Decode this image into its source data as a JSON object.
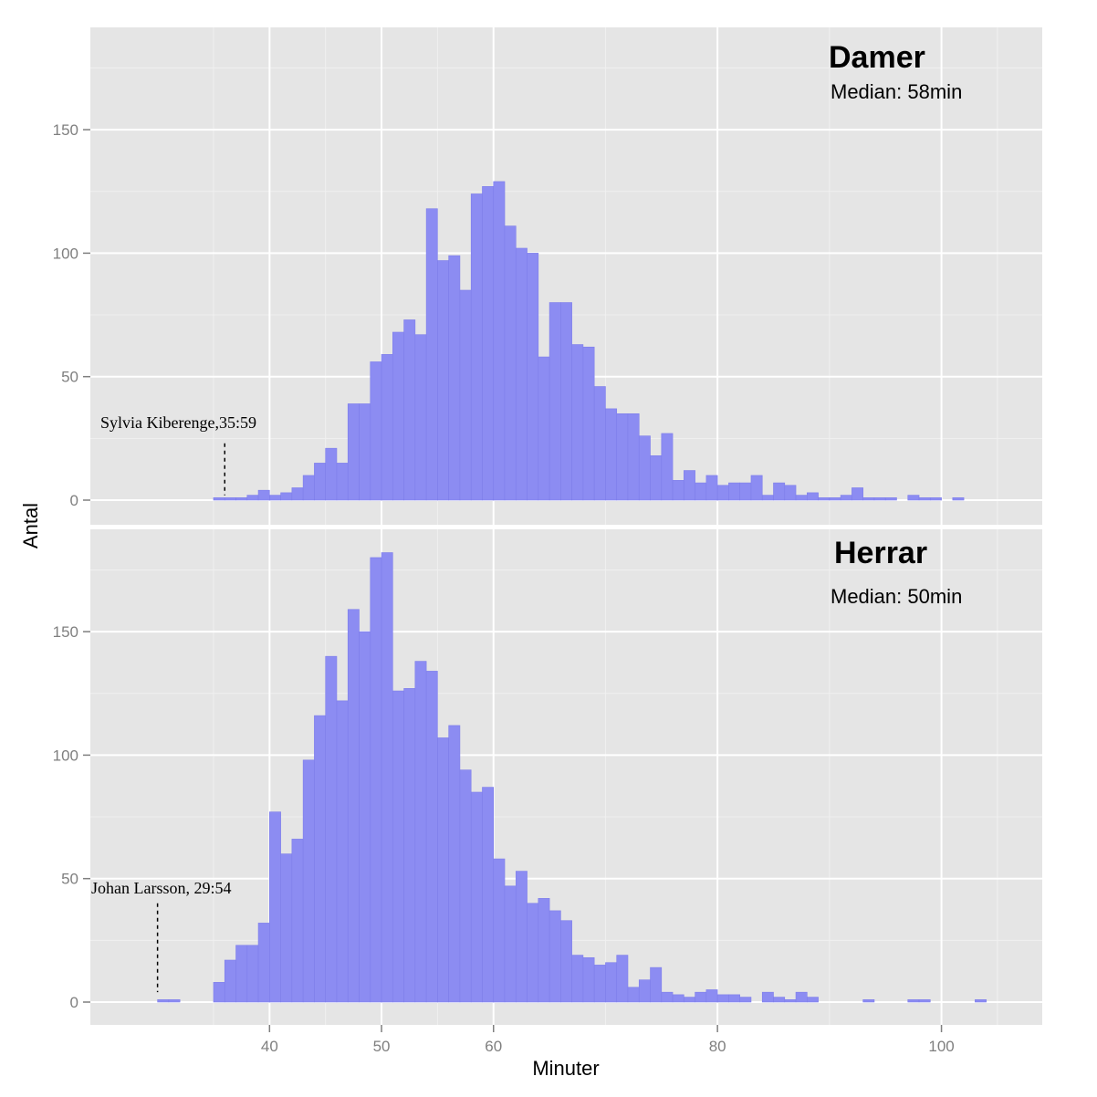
{
  "chart_data": {
    "type": "bar",
    "xlabel": "Minuter",
    "ylabel": "Antal",
    "xlim": [
      24,
      109
    ],
    "x_ticks": [
      40,
      50,
      60,
      80,
      100
    ],
    "x_tick_labels": [
      "40",
      "50",
      "60",
      "80",
      "100"
    ],
    "bin_width": 1,
    "grid": true,
    "colors": {
      "bar_fill": "#8c8cf2",
      "bar_stroke": "#7e7eea",
      "panel_bg": "#e5e5e5",
      "grid_major": "#ffffff",
      "grid_minor": "#f0f0f0",
      "tick_text": "#7f7f7f"
    },
    "panels": [
      {
        "title": "Damer",
        "median_text": "Median: 58min",
        "ylim": [
          0,
          185
        ],
        "y_ticks": [
          0,
          50,
          100,
          150
        ],
        "y_tick_labels": [
          "0",
          "50",
          "100",
          "150"
        ],
        "annotation": {
          "text": "Sylvia  Kiberenge,35:59",
          "x": 36,
          "y_from": 23,
          "y_to": 2
        },
        "bins": [
          {
            "x": 35,
            "y": 1
          },
          {
            "x": 36,
            "y": 1
          },
          {
            "x": 37,
            "y": 1
          },
          {
            "x": 38,
            "y": 2
          },
          {
            "x": 39,
            "y": 4
          },
          {
            "x": 40,
            "y": 2
          },
          {
            "x": 41,
            "y": 3
          },
          {
            "x": 42,
            "y": 5
          },
          {
            "x": 43,
            "y": 10
          },
          {
            "x": 44,
            "y": 15
          },
          {
            "x": 45,
            "y": 21
          },
          {
            "x": 46,
            "y": 15
          },
          {
            "x": 47,
            "y": 39
          },
          {
            "x": 48,
            "y": 39
          },
          {
            "x": 49,
            "y": 56
          },
          {
            "x": 50,
            "y": 59
          },
          {
            "x": 51,
            "y": 68
          },
          {
            "x": 52,
            "y": 73
          },
          {
            "x": 53,
            "y": 67
          },
          {
            "x": 54,
            "y": 118
          },
          {
            "x": 55,
            "y": 97
          },
          {
            "x": 56,
            "y": 99
          },
          {
            "x": 57,
            "y": 85
          },
          {
            "x": 58,
            "y": 124
          },
          {
            "x": 59,
            "y": 127
          },
          {
            "x": 60,
            "y": 129
          },
          {
            "x": 61,
            "y": 111
          },
          {
            "x": 62,
            "y": 102
          },
          {
            "x": 63,
            "y": 100
          },
          {
            "x": 64,
            "y": 58
          },
          {
            "x": 65,
            "y": 80
          },
          {
            "x": 66,
            "y": 80
          },
          {
            "x": 67,
            "y": 63
          },
          {
            "x": 68,
            "y": 62
          },
          {
            "x": 69,
            "y": 46
          },
          {
            "x": 70,
            "y": 37
          },
          {
            "x": 71,
            "y": 35
          },
          {
            "x": 72,
            "y": 35
          },
          {
            "x": 73,
            "y": 26
          },
          {
            "x": 74,
            "y": 18
          },
          {
            "x": 75,
            "y": 27
          },
          {
            "x": 76,
            "y": 8
          },
          {
            "x": 77,
            "y": 12
          },
          {
            "x": 78,
            "y": 7
          },
          {
            "x": 79,
            "y": 10
          },
          {
            "x": 80,
            "y": 6
          },
          {
            "x": 81,
            "y": 7
          },
          {
            "x": 82,
            "y": 7
          },
          {
            "x": 83,
            "y": 10
          },
          {
            "x": 84,
            "y": 2
          },
          {
            "x": 85,
            "y": 7
          },
          {
            "x": 86,
            "y": 6
          },
          {
            "x": 87,
            "y": 2
          },
          {
            "x": 88,
            "y": 3
          },
          {
            "x": 89,
            "y": 1
          },
          {
            "x": 90,
            "y": 1
          },
          {
            "x": 91,
            "y": 2
          },
          {
            "x": 92,
            "y": 5
          },
          {
            "x": 93,
            "y": 1
          },
          {
            "x": 94,
            "y": 1
          },
          {
            "x": 95,
            "y": 1
          },
          {
            "x": 97,
            "y": 2
          },
          {
            "x": 98,
            "y": 1
          },
          {
            "x": 99,
            "y": 1
          },
          {
            "x": 101,
            "y": 1
          }
        ]
      },
      {
        "title": "Herrar",
        "median_text": "Median: 50min",
        "ylim": [
          0,
          185
        ],
        "y_ticks": [
          0,
          50,
          100,
          150
        ],
        "y_tick_labels": [
          "0",
          "50",
          "100",
          "150"
        ],
        "annotation": {
          "text": "Johan Larsson, 29:54",
          "x": 30,
          "y_from": 40,
          "y_to": 4
        },
        "bins": [
          {
            "x": 30,
            "y": 1
          },
          {
            "x": 31,
            "y": 1
          },
          {
            "x": 35,
            "y": 8
          },
          {
            "x": 36,
            "y": 17
          },
          {
            "x": 37,
            "y": 23
          },
          {
            "x": 38,
            "y": 23
          },
          {
            "x": 39,
            "y": 32
          },
          {
            "x": 40,
            "y": 77
          },
          {
            "x": 41,
            "y": 60
          },
          {
            "x": 42,
            "y": 66
          },
          {
            "x": 43,
            "y": 98
          },
          {
            "x": 44,
            "y": 116
          },
          {
            "x": 45,
            "y": 140
          },
          {
            "x": 46,
            "y": 122
          },
          {
            "x": 47,
            "y": 159
          },
          {
            "x": 48,
            "y": 150
          },
          {
            "x": 49,
            "y": 180
          },
          {
            "x": 50,
            "y": 182
          },
          {
            "x": 51,
            "y": 126
          },
          {
            "x": 52,
            "y": 127
          },
          {
            "x": 53,
            "y": 138
          },
          {
            "x": 54,
            "y": 134
          },
          {
            "x": 55,
            "y": 107
          },
          {
            "x": 56,
            "y": 112
          },
          {
            "x": 57,
            "y": 94
          },
          {
            "x": 58,
            "y": 85
          },
          {
            "x": 59,
            "y": 87
          },
          {
            "x": 60,
            "y": 58
          },
          {
            "x": 61,
            "y": 47
          },
          {
            "x": 62,
            "y": 53
          },
          {
            "x": 63,
            "y": 40
          },
          {
            "x": 64,
            "y": 42
          },
          {
            "x": 65,
            "y": 37
          },
          {
            "x": 66,
            "y": 33
          },
          {
            "x": 67,
            "y": 19
          },
          {
            "x": 68,
            "y": 18
          },
          {
            "x": 69,
            "y": 15
          },
          {
            "x": 70,
            "y": 16
          },
          {
            "x": 71,
            "y": 19
          },
          {
            "x": 72,
            "y": 6
          },
          {
            "x": 73,
            "y": 9
          },
          {
            "x": 74,
            "y": 14
          },
          {
            "x": 75,
            "y": 4
          },
          {
            "x": 76,
            "y": 3
          },
          {
            "x": 77,
            "y": 2
          },
          {
            "x": 78,
            "y": 4
          },
          {
            "x": 79,
            "y": 5
          },
          {
            "x": 80,
            "y": 3
          },
          {
            "x": 81,
            "y": 3
          },
          {
            "x": 82,
            "y": 2
          },
          {
            "x": 84,
            "y": 4
          },
          {
            "x": 85,
            "y": 2
          },
          {
            "x": 86,
            "y": 1
          },
          {
            "x": 87,
            "y": 4
          },
          {
            "x": 88,
            "y": 2
          },
          {
            "x": 93,
            "y": 1
          },
          {
            "x": 97,
            "y": 1
          },
          {
            "x": 98,
            "y": 1
          },
          {
            "x": 103,
            "y": 1
          }
        ]
      }
    ]
  }
}
